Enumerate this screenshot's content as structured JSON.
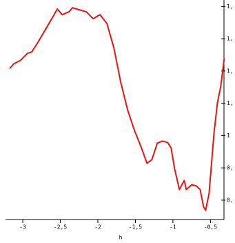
{
  "chart_data": {
    "type": "line",
    "x_label": "h",
    "xlim": [
      -3.23,
      -0.32
    ],
    "ylim": [
      0.48,
      1.84
    ],
    "xticks": [
      {
        "value": -3,
        "label": "-3"
      },
      {
        "value": -2.5,
        "label": "-2,5"
      },
      {
        "value": -2,
        "label": "-2"
      },
      {
        "value": -1.5,
        "label": "-1,5"
      },
      {
        "value": -1,
        "label": "-1"
      },
      {
        "value": -0.5,
        "label": "-0,5"
      }
    ],
    "yticks": [
      {
        "value": 0.6,
        "label": "0,"
      },
      {
        "value": 0.8,
        "label": "0,"
      },
      {
        "value": 1.0,
        "label": "1"
      },
      {
        "value": 1.2,
        "label": "1,"
      },
      {
        "value": 1.4,
        "label": "1,"
      },
      {
        "value": 1.6,
        "label": "1,"
      },
      {
        "value": 1.8,
        "label": "1,"
      }
    ],
    "series": [
      {
        "color": "#ee1111",
        "x": [
          -3.175,
          -3.119,
          -3.028,
          -2.936,
          -2.881,
          -2.798,
          -2.706,
          -2.614,
          -2.54,
          -2.476,
          -2.384,
          -2.338,
          -2.246,
          -2.154,
          -2.063,
          -1.971,
          -1.879,
          -1.787,
          -1.695,
          -1.603,
          -1.511,
          -1.419,
          -1.346,
          -1.281,
          -1.208,
          -1.143,
          -1.07,
          -1.024,
          -0.978,
          -0.914,
          -0.849,
          -0.822,
          -0.748,
          -0.684,
          -0.638,
          -0.592,
          -0.564,
          -0.518,
          -0.454,
          -0.408,
          -0.362,
          -0.316
        ],
        "values": [
          1.415,
          1.445,
          1.467,
          1.51,
          1.518,
          1.578,
          1.651,
          1.724,
          1.784,
          1.749,
          1.767,
          1.792,
          1.779,
          1.767,
          1.724,
          1.749,
          1.694,
          1.544,
          1.33,
          1.158,
          1.03,
          0.923,
          0.829,
          0.85,
          0.953,
          0.966,
          0.957,
          0.923,
          0.795,
          0.666,
          0.722,
          0.666,
          0.696,
          0.687,
          0.666,
          0.559,
          0.537,
          0.644,
          1.009,
          1.201,
          1.308,
          1.48
        ]
      }
    ]
  }
}
